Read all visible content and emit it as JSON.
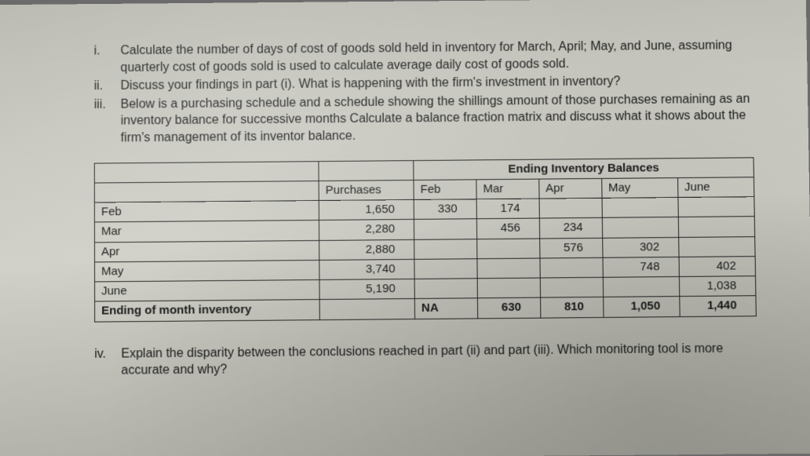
{
  "questions": [
    {
      "num": "i.",
      "text": "Calculate the number of days of cost of goods sold held in inventory for March, April; May, and June, assuming quarterly cost of goods sold is used to calculate average daily cost of goods sold."
    },
    {
      "num": "ii.",
      "text": "Discuss your findings in part (i). What is happening with the firm's investment in inventory?"
    },
    {
      "num": "iii.",
      "text": "Below is a purchasing schedule and a schedule showing the shillings amount of those purchases remaining as an inventory balance for successive months Calculate a balance fraction matrix and discuss what it shows about the firm's management of its inventor balance."
    }
  ],
  "table": {
    "group_header": "Ending Inventory Balances",
    "columns": [
      "",
      "Purchases",
      "Feb",
      "Mar",
      "Apr",
      "May",
      "June"
    ],
    "rows": [
      {
        "label": "Feb",
        "purchases": "1,650",
        "feb": "330",
        "mar": "174",
        "apr": "",
        "may": "",
        "june": ""
      },
      {
        "label": "Mar",
        "purchases": "2,280",
        "feb": "",
        "mar": "456",
        "apr": "234",
        "may": "",
        "june": ""
      },
      {
        "label": "Apr",
        "purchases": "2,880",
        "feb": "",
        "mar": "",
        "apr": "576",
        "may": "302",
        "june": ""
      },
      {
        "label": "May",
        "purchases": "3,740",
        "feb": "",
        "mar": "",
        "apr": "",
        "may": "748",
        "june": "402"
      },
      {
        "label": "June",
        "purchases": "5,190",
        "feb": "",
        "mar": "",
        "apr": "",
        "may": "",
        "june": "1,038"
      }
    ],
    "footer": {
      "label": "Ending of month inventory",
      "purchases": "",
      "feb": "NA",
      "mar": "630",
      "apr": "810",
      "may": "1,050",
      "june": "1,440"
    }
  },
  "footer_question": {
    "num": "iv.",
    "text": "Explain the disparity between the conclusions reached in part (ii) and part (iii). Which monitoring tool is more accurate and why?"
  }
}
